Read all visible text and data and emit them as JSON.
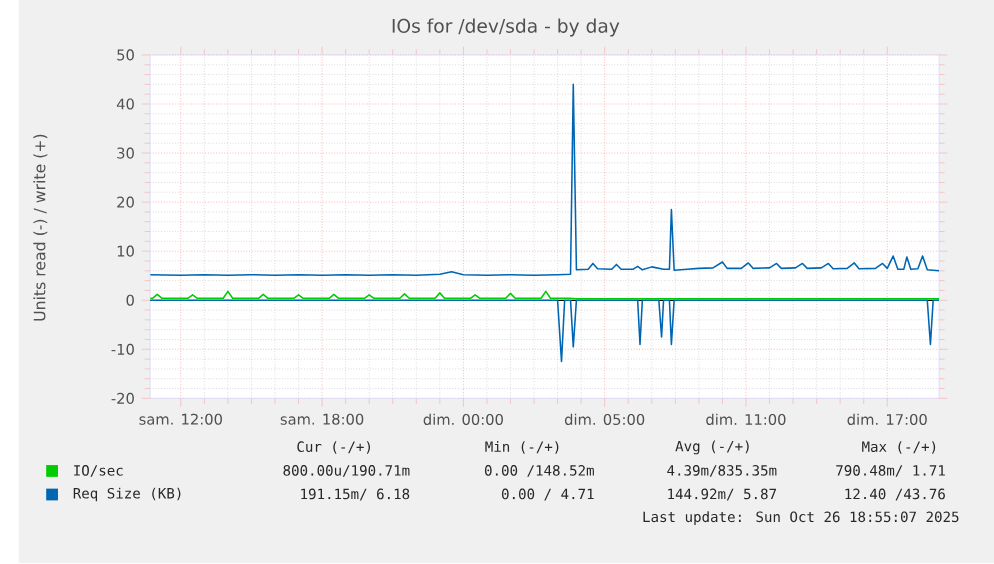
{
  "chart_data": {
    "type": "line",
    "title": "IOs for /dev/sda - by day",
    "ylabel": "Units read (-) / write (+)",
    "xlim": [
      "2025-10-25T08:42",
      "2025-10-26T18:12"
    ],
    "ylim": [
      -20,
      50
    ],
    "xticks": [
      {
        "value": "2025-10-25T10:00",
        "label": "sam. 12:00"
      },
      {
        "value": "2025-10-25T16:00",
        "label": "sam. 18:00"
      },
      {
        "value": "2025-10-25T22:00",
        "label": "dim. 00:00"
      },
      {
        "value": "2025-10-26T04:00",
        "label": "dim. 05:00"
      },
      {
        "value": "2025-10-26T10:00",
        "label": "dim. 11:00"
      },
      {
        "value": "2025-10-26T16:00",
        "label": "dim. 17:00"
      }
    ],
    "yticks": [
      -20,
      -10,
      0,
      10,
      20,
      30,
      40,
      50
    ],
    "grid": true,
    "legend": "bottom",
    "ref_lines": [
      {
        "axis": "y",
        "value": 0,
        "color": "#000000"
      }
    ],
    "series": [
      {
        "name": "IO/sec",
        "color": "#00cc00",
        "x": [
          "2025-10-25T08:42",
          "2025-10-25T08:48",
          "2025-10-25T09:00",
          "2025-10-25T09:12",
          "2025-10-25T10:18",
          "2025-10-25T10:30",
          "2025-10-25T10:42",
          "2025-10-25T11:48",
          "2025-10-25T12:00",
          "2025-10-25T12:12",
          "2025-10-25T13:18",
          "2025-10-25T13:30",
          "2025-10-25T13:42",
          "2025-10-25T14:48",
          "2025-10-25T15:00",
          "2025-10-25T15:12",
          "2025-10-25T16:18",
          "2025-10-25T16:30",
          "2025-10-25T16:42",
          "2025-10-25T17:48",
          "2025-10-25T18:00",
          "2025-10-25T18:12",
          "2025-10-25T19:18",
          "2025-10-25T19:30",
          "2025-10-25T19:42",
          "2025-10-25T20:48",
          "2025-10-25T21:00",
          "2025-10-25T21:12",
          "2025-10-25T22:18",
          "2025-10-25T22:30",
          "2025-10-25T22:42",
          "2025-10-25T23:48",
          "2025-10-26T00:00",
          "2025-10-26T00:12",
          "2025-10-26T01:18",
          "2025-10-26T01:30",
          "2025-10-26T01:42",
          "2025-10-26T02:30",
          "2025-10-26T02:48",
          "2025-10-26T18:12"
        ],
        "values": [
          0.4,
          0.4,
          1.2,
          0.4,
          0.4,
          1.1,
          0.4,
          0.4,
          1.8,
          0.4,
          0.4,
          1.2,
          0.4,
          0.4,
          1.1,
          0.4,
          0.4,
          1.2,
          0.4,
          0.4,
          1.1,
          0.4,
          0.4,
          1.3,
          0.4,
          0.4,
          1.5,
          0.4,
          0.4,
          1.1,
          0.4,
          0.4,
          1.4,
          0.4,
          0.4,
          1.8,
          0.4,
          0.4,
          0.3,
          0.3
        ]
      },
      {
        "name": "Req Size (KB)",
        "color": "#0066b3",
        "x": [
          "2025-10-25T08:42",
          "2025-10-25T10:00",
          "2025-10-25T11:00",
          "2025-10-25T12:00",
          "2025-10-25T13:00",
          "2025-10-25T14:00",
          "2025-10-25T15:00",
          "2025-10-25T16:00",
          "2025-10-25T17:00",
          "2025-10-25T18:00",
          "2025-10-25T19:00",
          "2025-10-25T20:00",
          "2025-10-25T21:00",
          "2025-10-25T21:30",
          "2025-10-25T22:00",
          "2025-10-25T23:00",
          "2025-10-26T00:00",
          "2025-10-26T01:00",
          "2025-10-26T02:00",
          "2025-10-26T02:33",
          "2025-10-26T02:40",
          "2025-10-26T02:48",
          "2025-10-26T03:18",
          "2025-10-26T03:30",
          "2025-10-26T03:42",
          "2025-10-26T04:18",
          "2025-10-26T04:30",
          "2025-10-26T04:42",
          "2025-10-26T05:12",
          "2025-10-26T05:24",
          "2025-10-26T05:36",
          "2025-10-26T06:00",
          "2025-10-26T06:30",
          "2025-10-26T06:45",
          "2025-10-26T06:50",
          "2025-10-26T06:57",
          "2025-10-26T07:30",
          "2025-10-26T08:00",
          "2025-10-26T08:36",
          "2025-10-26T09:00",
          "2025-10-26T09:12",
          "2025-10-26T09:48",
          "2025-10-26T10:06",
          "2025-10-26T10:18",
          "2025-10-26T11:00",
          "2025-10-26T11:18",
          "2025-10-26T11:30",
          "2025-10-26T12:06",
          "2025-10-26T12:24",
          "2025-10-26T12:36",
          "2025-10-26T13:12",
          "2025-10-26T13:30",
          "2025-10-26T13:42",
          "2025-10-26T14:18",
          "2025-10-26T14:36",
          "2025-10-26T14:48",
          "2025-10-26T15:30",
          "2025-10-26T15:48",
          "2025-10-26T16:00",
          "2025-10-26T16:15",
          "2025-10-26T16:27",
          "2025-10-26T16:42",
          "2025-10-26T16:50",
          "2025-10-26T17:00",
          "2025-10-26T17:18",
          "2025-10-26T17:30",
          "2025-10-26T17:42",
          "2025-10-26T18:12"
        ],
        "values": [
          5.2,
          5.1,
          5.2,
          5.1,
          5.2,
          5.1,
          5.2,
          5.1,
          5.2,
          5.1,
          5.2,
          5.1,
          5.3,
          5.8,
          5.2,
          5.1,
          5.2,
          5.1,
          5.2,
          5.3,
          44,
          6.2,
          6.3,
          7.5,
          6.4,
          6.3,
          7.3,
          6.3,
          6.3,
          6.9,
          6.2,
          6.8,
          6.3,
          6.3,
          18.5,
          6.1,
          6.3,
          6.5,
          6.6,
          7.8,
          6.5,
          6.5,
          7.6,
          6.5,
          6.6,
          7.5,
          6.5,
          6.6,
          7.5,
          6.5,
          6.6,
          7.5,
          6.4,
          6.5,
          7.6,
          6.4,
          6.5,
          7.5,
          6.5,
          9.0,
          6.3,
          6.3,
          8.8,
          6.3,
          6.4,
          9.0,
          6.2,
          6.0
        ]
      },
      {
        "color": "#0066b3",
        "x": [
          "2025-10-25T08:42",
          "2025-10-26T02:00",
          "2025-10-26T02:10",
          "2025-10-26T02:18",
          "2025-10-26T02:33",
          "2025-10-26T02:40",
          "2025-10-26T02:48",
          "2025-10-26T05:24",
          "2025-10-26T05:30",
          "2025-10-26T05:36",
          "2025-10-26T06:18",
          "2025-10-26T06:25",
          "2025-10-26T06:30",
          "2025-10-26T06:45",
          "2025-10-26T06:50",
          "2025-10-26T06:57",
          "2025-10-26T17:42",
          "2025-10-26T17:50",
          "2025-10-26T17:57",
          "2025-10-26T18:12"
        ],
        "values": [
          0,
          0,
          -12.5,
          0,
          0,
          -9.5,
          0,
          0,
          -9,
          0,
          0,
          -7.5,
          0,
          0,
          -9,
          0,
          0,
          -9,
          0,
          0
        ]
      }
    ],
    "annotations": [
      "Cur (-/+)",
      "Min (-/+)",
      "Avg (-/+)",
      "Max (-/+)",
      "800.00u/190.71m",
      "0.00 /148.52m",
      "4.39m/835.35m",
      "790.48m/ 1.71",
      "191.15m/ 6.18",
      "0.00 / 4.71",
      "144.92m/ 5.87",
      "12.40 /43.76",
      "Last update: Sun Oct 26 18:55:07 2025"
    ]
  }
}
